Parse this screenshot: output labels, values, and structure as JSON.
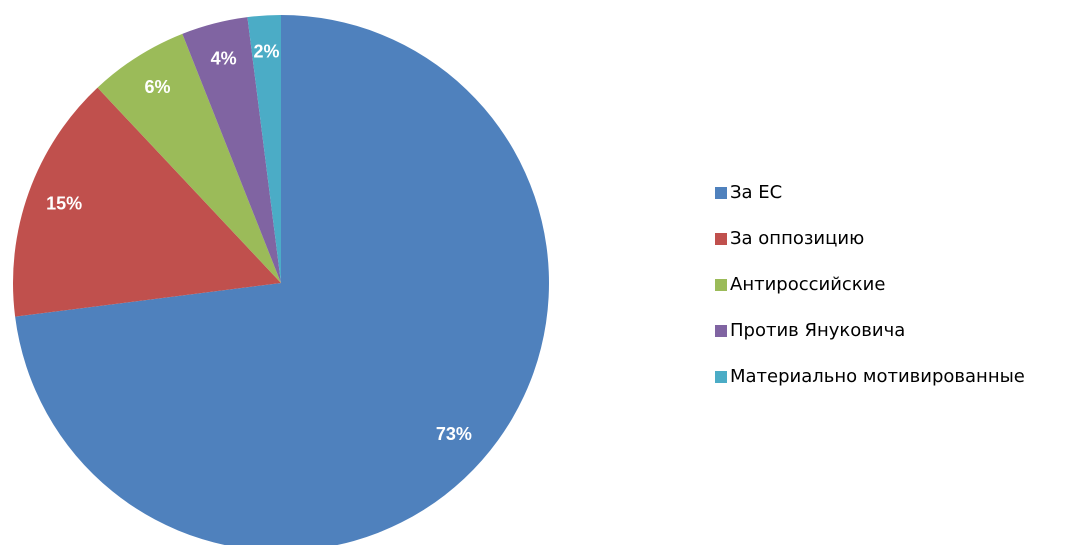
{
  "chart_data": {
    "type": "pie",
    "categories": [
      "За ЕС",
      "За оппозицию",
      "Антироссийские",
      "Против Януковича",
      "Материально мотивированные"
    ],
    "values": [
      73,
      15,
      6,
      4,
      2
    ],
    "value_labels": [
      "73%",
      "15%",
      "6%",
      "4%",
      "2%"
    ],
    "colors": [
      "#4f81bd",
      "#c0504d",
      "#9bbb59",
      "#8064a2",
      "#4bacc6"
    ],
    "legend": "right"
  }
}
